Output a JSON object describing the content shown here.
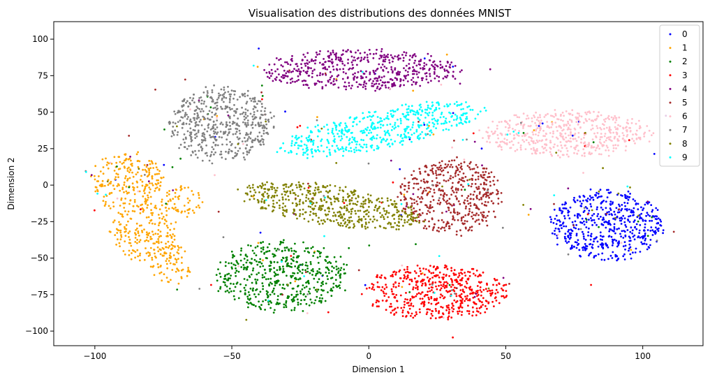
{
  "chart_data": {
    "type": "scatter",
    "title": "Visualisation des distributions des données MNIST",
    "xlabel": "Dimension 1",
    "ylabel": "Dimension 2",
    "xlim": [
      -115,
      122
    ],
    "ylim": [
      -110,
      112
    ],
    "xticks": [
      -100,
      -50,
      0,
      50,
      100
    ],
    "yticks": [
      -100,
      -75,
      -50,
      -25,
      0,
      25,
      50,
      75,
      100
    ],
    "xtick_labels": [
      "−100",
      "−50",
      "0",
      "50",
      "100"
    ],
    "ytick_labels": [
      "−100",
      "−75",
      "−50",
      "−25",
      "0",
      "25",
      "50",
      "75",
      "100"
    ],
    "grid": false,
    "legend_position": "top-right",
    "series": [
      {
        "name": "0",
        "color": "#0000ff",
        "clusters": [
          {
            "cx": 87,
            "cy": -27,
            "rx": 22,
            "ry": 26,
            "rot": 0,
            "n": 520
          }
        ]
      },
      {
        "name": "1",
        "color": "#ffa500",
        "clusters": [
          {
            "cx": -88,
            "cy": 3,
            "rx": 14,
            "ry": 22,
            "rot": 0,
            "n": 220
          },
          {
            "cx": -82,
            "cy": -32,
            "rx": 13,
            "ry": 22,
            "rot": 0,
            "n": 200
          },
          {
            "cx": -72,
            "cy": -55,
            "rx": 8,
            "ry": 15,
            "rot": 0,
            "n": 70
          },
          {
            "cx": -68,
            "cy": -12,
            "rx": 8,
            "ry": 12,
            "rot": 0,
            "n": 60
          }
        ]
      },
      {
        "name": "2",
        "color": "#008000",
        "clusters": [
          {
            "cx": -32,
            "cy": -62,
            "rx": 26,
            "ry": 26,
            "rot": 0,
            "n": 520
          }
        ]
      },
      {
        "name": "3",
        "color": "#ff0000",
        "clusters": [
          {
            "cx": 24,
            "cy": -73,
            "rx": 28,
            "ry": 20,
            "rot": 0,
            "n": 520
          }
        ]
      },
      {
        "name": "4",
        "color": "#800080",
        "clusters": [
          {
            "cx": -3,
            "cy": 79,
            "rx": 38,
            "ry": 15,
            "rot": 0,
            "n": 520
          }
        ]
      },
      {
        "name": "5",
        "color": "#a52a2a",
        "clusters": [
          {
            "cx": 30,
            "cy": -8,
            "rx": 20,
            "ry": 28,
            "rot": 0,
            "n": 480
          }
        ]
      },
      {
        "name": "6",
        "color": "#ffc0cb",
        "clusters": [
          {
            "cx": 72,
            "cy": 35,
            "rx": 33,
            "ry": 17,
            "rot": 0,
            "n": 520
          }
        ]
      },
      {
        "name": "7",
        "color": "#808080",
        "clusters": [
          {
            "cx": -54,
            "cy": 42,
            "rx": 20,
            "ry": 28,
            "rot": 0,
            "n": 520
          }
        ]
      },
      {
        "name": "8",
        "color": "#808000",
        "clusters": [
          {
            "cx": -14,
            "cy": -14,
            "rx": 38,
            "ry": 14,
            "rot": -18,
            "n": 520
          }
        ]
      },
      {
        "name": "9",
        "color": "#00ffff",
        "clusters": [
          {
            "cx": 4,
            "cy": 38,
            "rx": 42,
            "ry": 14,
            "rot": 22,
            "n": 520
          }
        ]
      }
    ]
  }
}
